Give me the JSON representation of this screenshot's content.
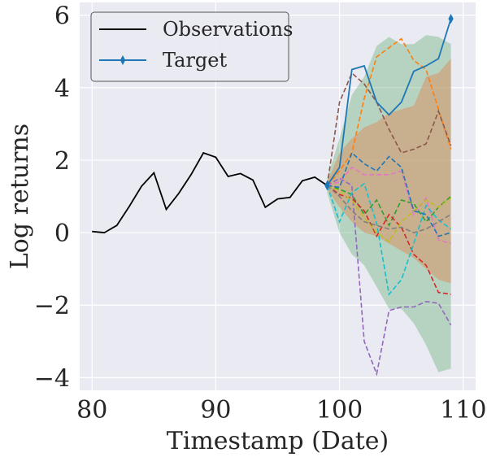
{
  "chart_data": {
    "type": "line",
    "xlabel": "Timestamp (Date)",
    "ylabel": "Log returns",
    "xlim": [
      79,
      111
    ],
    "ylim": [
      -4.35,
      6.35
    ],
    "xticks": [
      80,
      90,
      100,
      110
    ],
    "yticks": [
      -4,
      -2,
      0,
      2,
      4,
      6
    ],
    "grid": true,
    "legend_position": "top-left",
    "background": "#eaeaf2",
    "observations": {
      "name": "Observations",
      "color": "#000000",
      "x": [
        80,
        81,
        82,
        83,
        84,
        85,
        86,
        87,
        88,
        89,
        90,
        91,
        92,
        93,
        94,
        95,
        96,
        97,
        98,
        99
      ],
      "y": [
        0.03,
        0.0,
        0.2,
        0.72,
        1.28,
        1.65,
        0.64,
        1.08,
        1.6,
        2.2,
        2.08,
        1.55,
        1.63,
        1.45,
        0.7,
        0.93,
        0.97,
        1.43,
        1.53,
        1.3
      ]
    },
    "target": {
      "name": "Target",
      "color": "#1f77b4",
      "marker": "thin-diamond",
      "x": [
        99,
        100,
        101,
        102,
        103,
        104,
        105,
        106,
        107,
        108,
        109
      ],
      "y": [
        1.3,
        1.8,
        4.5,
        4.6,
        3.6,
        3.25,
        3.6,
        4.45,
        4.6,
        4.8,
        5.9
      ]
    },
    "outer_band": {
      "color": "#55a868",
      "x": [
        99,
        100,
        101,
        102,
        103,
        104,
        105,
        106,
        107,
        108,
        109
      ],
      "upper": [
        1.5,
        2.6,
        3.8,
        4.3,
        5.15,
        5.4,
        5.2,
        5.2,
        5.45,
        5.4,
        5.2
      ],
      "lower": [
        1.1,
        0.0,
        -0.6,
        -0.9,
        -1.5,
        -2.1,
        -2.1,
        -2.5,
        -3.1,
        -3.85,
        -3.75
      ]
    },
    "inner_band": {
      "color": "#dd8452",
      "x": [
        99,
        100,
        101,
        102,
        103,
        104,
        105,
        106,
        107,
        108,
        109
      ],
      "upper": [
        1.4,
        2.2,
        2.6,
        2.9,
        3.05,
        3.3,
        3.4,
        3.5,
        4.3,
        4.4,
        4.8
      ],
      "lower": [
        1.2,
        0.7,
        0.3,
        0.0,
        -0.1,
        -0.3,
        -0.5,
        -0.7,
        -1.0,
        -1.3,
        -1.4
      ]
    },
    "samples": [
      {
        "color": "#ff7f0e",
        "x": [
          99,
          100,
          101,
          102,
          103,
          104,
          105,
          106,
          107,
          108,
          109
        ],
        "y": [
          1.3,
          1.7,
          2.2,
          3.7,
          4.85,
          5.1,
          5.35,
          4.75,
          4.5,
          3.4,
          2.3
        ]
      },
      {
        "color": "#8c564b",
        "x": [
          99,
          100,
          101,
          102,
          103,
          104,
          105,
          106,
          107,
          108,
          109
        ],
        "y": [
          1.3,
          3.6,
          4.4,
          4.1,
          3.6,
          2.85,
          2.2,
          2.3,
          2.45,
          3.35,
          2.4
        ]
      },
      {
        "color": "#2ca02c",
        "x": [
          99,
          100,
          101,
          102,
          103,
          104,
          105,
          106,
          107,
          108,
          109
        ],
        "y": [
          1.3,
          1.2,
          1.05,
          0.5,
          0.9,
          0.2,
          0.9,
          0.8,
          0.3,
          0.7,
          1.0
        ]
      },
      {
        "color": "#d62728",
        "x": [
          99,
          100,
          101,
          102,
          103,
          104,
          105,
          106,
          107,
          108,
          109
        ],
        "y": [
          1.3,
          1.05,
          0.95,
          0.6,
          -0.1,
          0.5,
          0.15,
          -0.6,
          -0.9,
          -1.65,
          -1.7
        ]
      },
      {
        "color": "#9467bd",
        "x": [
          99,
          100,
          101,
          102,
          103,
          104,
          105,
          106,
          107,
          108,
          109
        ],
        "y": [
          1.3,
          1.5,
          1.3,
          -3.0,
          -3.9,
          -2.15,
          -2.05,
          -2.05,
          -1.9,
          -1.95,
          -2.55
        ]
      },
      {
        "color": "#e377c2",
        "x": [
          99,
          100,
          101,
          102,
          103,
          104,
          105,
          106,
          107,
          108,
          109
        ],
        "y": [
          1.3,
          1.4,
          1.8,
          1.6,
          1.6,
          1.6,
          1.7,
          0.5,
          0.95,
          -0.2,
          -0.3
        ]
      },
      {
        "color": "#bcbd22",
        "x": [
          99,
          100,
          101,
          102,
          103,
          104,
          105,
          106,
          107,
          108,
          109
        ],
        "y": [
          1.3,
          1.15,
          0.9,
          0.4,
          0.0,
          -0.25,
          0.3,
          0.6,
          0.9,
          0.7,
          0.95
        ]
      },
      {
        "color": "#17becf",
        "x": [
          99,
          100,
          101,
          102,
          103,
          104,
          105,
          106,
          107,
          108,
          109
        ],
        "y": [
          1.3,
          0.3,
          1.1,
          1.35,
          0.25,
          -1.7,
          -1.3,
          -0.3,
          0.75,
          0.35,
          0.1
        ]
      },
      {
        "color": "#1f77b4",
        "x": [
          99,
          100,
          101,
          102,
          103,
          104,
          105,
          106,
          107,
          108,
          109
        ],
        "y": [
          1.3,
          1.25,
          2.2,
          1.9,
          1.7,
          2.1,
          1.8,
          0.6,
          0.5,
          -0.1,
          0.0
        ]
      },
      {
        "color": "#7f7f7f",
        "x": [
          99,
          100,
          101,
          102,
          103,
          104,
          105,
          106,
          107,
          108,
          109
        ],
        "y": [
          1.3,
          1.0,
          0.6,
          0.3,
          0.2,
          0.1,
          0.15,
          0.0,
          0.1,
          0.3,
          0.5
        ]
      }
    ],
    "legend": [
      {
        "label": "Observations",
        "color": "#000000",
        "marker": ""
      },
      {
        "label": "Target",
        "color": "#1f77b4",
        "marker": "thin-diamond"
      }
    ]
  }
}
